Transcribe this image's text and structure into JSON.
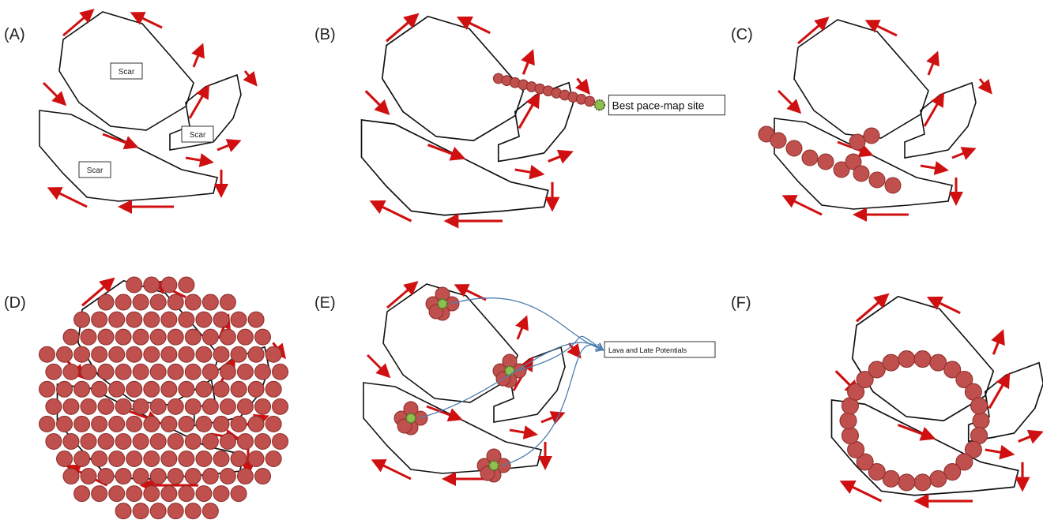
{
  "panels": [
    {
      "label": "(A)",
      "scars": [
        "Scar",
        "Scar",
        "Scar"
      ]
    },
    {
      "label": "(B)",
      "annotation": "Best pace-map site"
    },
    {
      "label": "(C)"
    },
    {
      "label": "(D)"
    },
    {
      "label": "(E)",
      "annotation": "Lava and Late Potentials"
    },
    {
      "label": "(F)"
    }
  ]
}
